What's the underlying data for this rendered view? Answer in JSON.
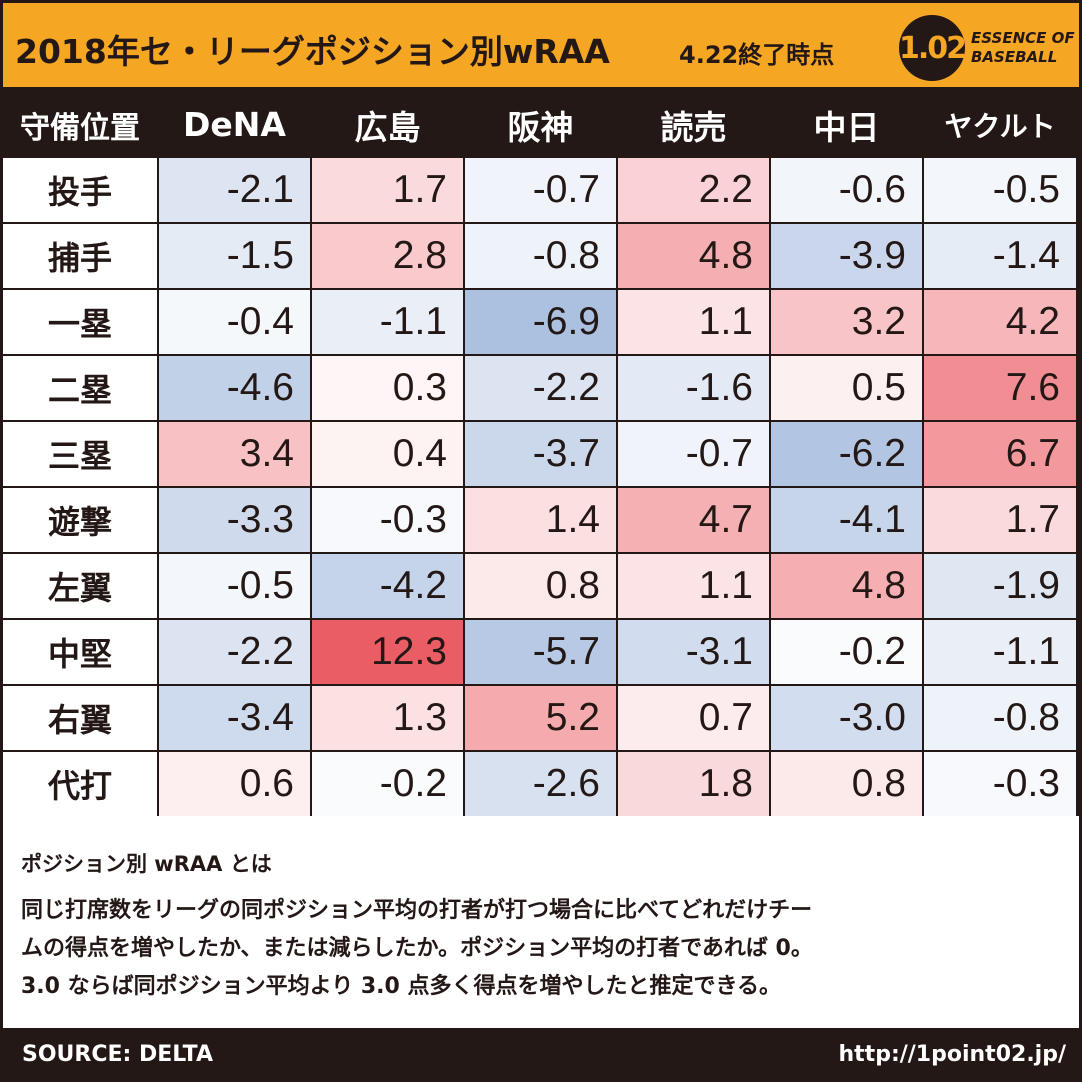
{
  "header": {
    "title": "2018年セ・リーグポジション別wRAA",
    "subtitle": "4.22終了時点",
    "logo": {
      "mark": "1.02",
      "text_line1": "ESSENCE OF",
      "text_line2": "BASEBALL"
    }
  },
  "colors": {
    "accent": "#f5a623",
    "dark": "#231815",
    "positive": "#e8404a",
    "negative": "#5e86c4"
  },
  "chart_data": {
    "type": "heatmap",
    "corner_label": "守備位置",
    "columns": [
      "DeNA",
      "広島",
      "阪神",
      "読売",
      "中日",
      "ヤクルト"
    ],
    "rows": [
      "投手",
      "捕手",
      "一塁",
      "二塁",
      "三塁",
      "遊撃",
      "左翼",
      "中堅",
      "右翼",
      "代打"
    ],
    "values": [
      [
        -2.1,
        1.7,
        -0.7,
        2.2,
        -0.6,
        -0.5
      ],
      [
        -1.5,
        2.8,
        -0.8,
        4.8,
        -3.9,
        -1.4
      ],
      [
        -0.4,
        -1.1,
        -6.9,
        1.1,
        3.2,
        4.2
      ],
      [
        -4.6,
        0.3,
        -2.2,
        -1.6,
        0.5,
        7.6
      ],
      [
        3.4,
        0.4,
        -3.7,
        -0.7,
        -6.2,
        6.7
      ],
      [
        -3.3,
        -0.3,
        1.4,
        4.7,
        -4.1,
        1.7
      ],
      [
        -0.5,
        -4.2,
        0.8,
        1.1,
        4.8,
        -1.9
      ],
      [
        -2.2,
        12.3,
        -5.7,
        -3.1,
        -0.2,
        -1.1
      ],
      [
        -3.4,
        1.3,
        5.2,
        0.7,
        -3.0,
        -0.8
      ],
      [
        0.6,
        -0.2,
        -2.6,
        1.8,
        0.8,
        -0.3
      ]
    ],
    "color_scale": {
      "min_value": -12.3,
      "mid_value": 0,
      "max_value": 12.3
    }
  },
  "note": {
    "heading": "ポジション別 wRAA とは",
    "lines": [
      "同じ打席数をリーグの同ポジション平均の打者が打つ場合に比べてどれだけチー",
      "ムの得点を増やしたか、または減らしたか。ポジション平均の打者であれば 0。",
      "3.0 ならば同ポジション平均より 3.0 点多く得点を増やしたと推定できる。"
    ]
  },
  "footer": {
    "source": "SOURCE: DELTA",
    "url": "http://1point02.jp/"
  }
}
